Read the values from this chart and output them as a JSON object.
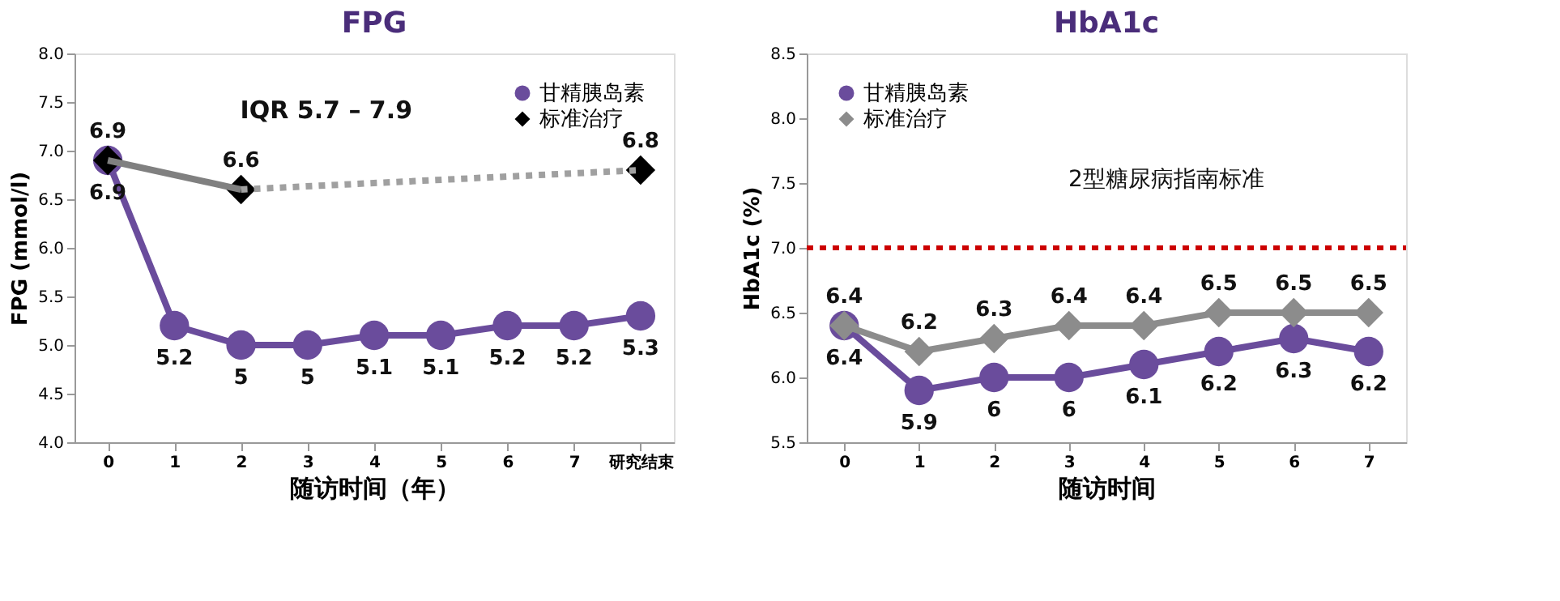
{
  "chart_data": [
    {
      "type": "line",
      "title": "FPG",
      "xlabel": "随访时间（年）",
      "ylabel": "FPG (mmol/l)",
      "categories": [
        "0",
        "1",
        "2",
        "3",
        "4",
        "5",
        "6",
        "7",
        "研究结束"
      ],
      "ylim": [
        4.0,
        8.0
      ],
      "yticks": [
        {
          "value": 4,
          "label": "4.0"
        },
        4.5,
        {
          "value": 5,
          "label": "5.0"
        },
        5.5,
        {
          "value": 6,
          "label": "6.0"
        },
        6.5,
        {
          "value": 7,
          "label": "7.0"
        },
        7.5,
        {
          "value": 8,
          "label": "8.0"
        }
      ],
      "legend": "top right",
      "grid": false,
      "data_labels": true,
      "annotations": [
        "IQR 5.7 – 7.9"
      ],
      "series": [
        {
          "name": "甘精胰岛素",
          "color": "#6a4c9c",
          "marker": "circle",
          "values": [
            6.9,
            5.2,
            5,
            5,
            5.1,
            5.1,
            5.2,
            5.2,
            5.3
          ]
        },
        {
          "name": "标准治疗",
          "type": "scatter",
          "color": "#000000",
          "marker": "diamond",
          "values": [
            6.9,
            null,
            6.6,
            null,
            null,
            null,
            null,
            null,
            6.8
          ]
        },
        {
          "color": "#808080",
          "marker": "none",
          "line_style": "solid",
          "values": [
            6.9,
            null,
            6.6,
            null,
            null,
            null,
            null,
            null,
            null
          ],
          "value_labels": [
            null,
            null,
            null,
            null,
            null,
            null,
            null,
            null,
            null
          ]
        },
        {
          "color": "#a0a0a0",
          "marker": "none",
          "line_style": "dotted",
          "values": [
            null,
            null,
            6.6,
            null,
            null,
            null,
            null,
            null,
            6.8
          ],
          "value_labels": [
            null,
            null,
            null,
            null,
            null,
            null,
            null,
            null,
            null
          ]
        }
      ]
    },
    {
      "type": "line",
      "title": "HbA1c",
      "xlabel": "随访时间",
      "ylabel": "HbA1c (%)",
      "categories": [
        "0",
        "1",
        "2",
        "3",
        "4",
        "5",
        "6",
        "7"
      ],
      "ylim": [
        5.5,
        8.5
      ],
      "yticks": [
        5.5,
        {
          "value": 6,
          "label": "6.0"
        },
        6.5,
        {
          "value": 7,
          "label": "7.0"
        },
        7.5,
        {
          "value": 8,
          "label": "8.0"
        },
        8.5
      ],
      "legend": "top left",
      "grid": false,
      "data_labels": true,
      "ref_lines": [
        {
          "axis": "y",
          "value": 7.0,
          "label": "2型糖尿病指南标准",
          "color": "#cc0000",
          "line_style": "dotted"
        }
      ],
      "series": [
        {
          "name": "甘精胰岛素",
          "color": "#6a4c9c",
          "marker": "circle",
          "values": [
            6.4,
            5.9,
            6,
            6,
            6.1,
            6.2,
            6.3,
            6.2
          ]
        },
        {
          "name": "标准治疗",
          "color": "#8c8c8c",
          "marker": "diamond",
          "values": [
            6.4,
            6.2,
            6.3,
            6.4,
            6.4,
            6.5,
            6.5,
            6.5
          ]
        }
      ]
    }
  ]
}
